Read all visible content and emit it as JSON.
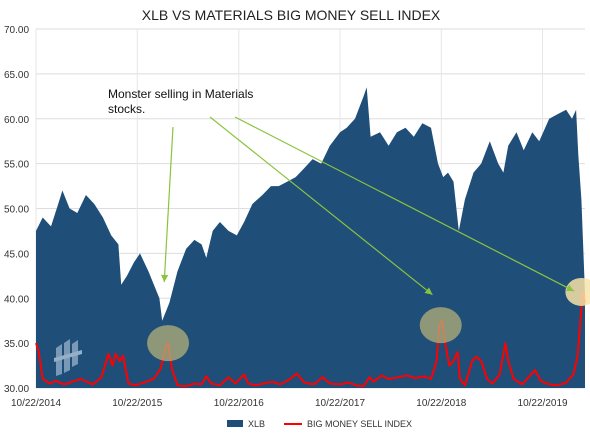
{
  "chart_data": {
    "type": "area",
    "title": "XLB VS MATERIALS BIG MONEY SELL INDEX",
    "ylim": [
      30,
      70
    ],
    "y_ticks": [
      "70.00",
      "65.00",
      "60.00",
      "55.00",
      "50.00",
      "45.00",
      "40.00",
      "35.00",
      "30.00"
    ],
    "x_ticks": [
      "10/22/2014",
      "10/22/2015",
      "10/22/2016",
      "10/22/2017",
      "10/22/2018",
      "10/22/2019"
    ],
    "x_range": [
      "2014-10-22",
      "2020-03-23"
    ],
    "grid": true,
    "legend_position": "bottom",
    "annotation": {
      "text_line1": "Monster selling in Materials",
      "text_line2": "stocks.",
      "arrow_targets": [
        "2016-01-20",
        "2018-09-20",
        "2020-02-05"
      ],
      "highlights": [
        {
          "date": "2016-02-10",
          "value": 35.0
        },
        {
          "date": "2018-10-20",
          "value": 37.0
        },
        {
          "date": "2020-03-10",
          "value": 40.7
        }
      ]
    },
    "series": [
      {
        "name": "XLB",
        "color": "#1f4e79",
        "type": "area",
        "points": [
          [
            "2014-10-22",
            47.5
          ],
          [
            "2014-11-15",
            49.0
          ],
          [
            "2014-12-15",
            48.0
          ],
          [
            "2015-01-10",
            50.5
          ],
          [
            "2015-01-25",
            52.0
          ],
          [
            "2015-02-20",
            50.0
          ],
          [
            "2015-03-20",
            49.5
          ],
          [
            "2015-04-20",
            51.5
          ],
          [
            "2015-05-20",
            50.5
          ],
          [
            "2015-06-20",
            49.0
          ],
          [
            "2015-07-20",
            47.0
          ],
          [
            "2015-08-15",
            46.0
          ],
          [
            "2015-08-25",
            41.5
          ],
          [
            "2015-09-15",
            42.5
          ],
          [
            "2015-10-10",
            44.0
          ],
          [
            "2015-11-01",
            45.0
          ],
          [
            "2015-12-01",
            43.0
          ],
          [
            "2016-01-10",
            40.0
          ],
          [
            "2016-01-20",
            37.5
          ],
          [
            "2016-02-15",
            39.5
          ],
          [
            "2016-03-15",
            43.0
          ],
          [
            "2016-04-15",
            45.5
          ],
          [
            "2016-05-15",
            46.5
          ],
          [
            "2016-06-10",
            46.0
          ],
          [
            "2016-06-27",
            44.5
          ],
          [
            "2016-07-20",
            47.5
          ],
          [
            "2016-08-15",
            48.5
          ],
          [
            "2016-09-15",
            47.5
          ],
          [
            "2016-10-15",
            47.0
          ],
          [
            "2016-11-10",
            48.5
          ],
          [
            "2016-12-10",
            50.5
          ],
          [
            "2017-01-15",
            51.5
          ],
          [
            "2017-02-15",
            52.5
          ],
          [
            "2017-03-15",
            52.5
          ],
          [
            "2017-04-15",
            53.0
          ],
          [
            "2017-05-15",
            53.5
          ],
          [
            "2017-06-15",
            54.5
          ],
          [
            "2017-07-15",
            55.5
          ],
          [
            "2017-08-15",
            55.0
          ],
          [
            "2017-09-15",
            57.0
          ],
          [
            "2017-10-22",
            58.5
          ],
          [
            "2017-11-15",
            59.0
          ],
          [
            "2017-12-15",
            60.0
          ],
          [
            "2018-01-15",
            62.5
          ],
          [
            "2018-01-26",
            63.5
          ],
          [
            "2018-02-09",
            58.0
          ],
          [
            "2018-03-15",
            58.5
          ],
          [
            "2018-04-15",
            57.0
          ],
          [
            "2018-05-15",
            58.5
          ],
          [
            "2018-06-15",
            59.0
          ],
          [
            "2018-07-15",
            58.0
          ],
          [
            "2018-08-15",
            59.5
          ],
          [
            "2018-09-15",
            59.0
          ],
          [
            "2018-10-10",
            55.0
          ],
          [
            "2018-10-29",
            53.5
          ],
          [
            "2018-11-15",
            54.0
          ],
          [
            "2018-12-05",
            53.0
          ],
          [
            "2018-12-24",
            47.5
          ],
          [
            "2019-01-15",
            51.0
          ],
          [
            "2019-02-15",
            54.0
          ],
          [
            "2019-03-15",
            55.0
          ],
          [
            "2019-04-15",
            57.5
          ],
          [
            "2019-05-15",
            55.0
          ],
          [
            "2019-06-03",
            54.0
          ],
          [
            "2019-06-20",
            57.0
          ],
          [
            "2019-07-20",
            58.5
          ],
          [
            "2019-08-15",
            56.5
          ],
          [
            "2019-09-15",
            58.5
          ],
          [
            "2019-10-10",
            57.5
          ],
          [
            "2019-11-15",
            60.0
          ],
          [
            "2019-12-15",
            60.5
          ],
          [
            "2020-01-15",
            61.0
          ],
          [
            "2020-02-05",
            60.0
          ],
          [
            "2020-02-20",
            61.0
          ],
          [
            "2020-02-28",
            56.0
          ],
          [
            "2020-03-10",
            51.0
          ],
          [
            "2020-03-23",
            40.5
          ]
        ]
      },
      {
        "name": "BIG MONEY SELL INDEX",
        "color": "#ff0000",
        "type": "line",
        "points": [
          [
            "2014-10-22",
            35.0
          ],
          [
            "2014-11-01",
            34.0
          ],
          [
            "2014-11-15",
            31.0
          ],
          [
            "2014-12-10",
            30.5
          ],
          [
            "2015-01-01",
            30.8
          ],
          [
            "2015-02-01",
            30.4
          ],
          [
            "2015-03-01",
            30.7
          ],
          [
            "2015-04-01",
            31.0
          ],
          [
            "2015-05-15",
            30.4
          ],
          [
            "2015-06-15",
            31.2
          ],
          [
            "2015-07-10",
            33.8
          ],
          [
            "2015-07-25",
            32.5
          ],
          [
            "2015-08-05",
            33.8
          ],
          [
            "2015-08-20",
            33.0
          ],
          [
            "2015-09-01",
            33.6
          ],
          [
            "2015-09-20",
            30.5
          ],
          [
            "2015-10-15",
            30.3
          ],
          [
            "2015-11-15",
            30.6
          ],
          [
            "2015-12-20",
            31.0
          ],
          [
            "2016-01-15",
            32.2
          ],
          [
            "2016-02-01",
            34.5
          ],
          [
            "2016-02-10",
            35.0
          ],
          [
            "2016-02-25",
            32.0
          ],
          [
            "2016-03-15",
            30.3
          ],
          [
            "2016-04-15",
            30.2
          ],
          [
            "2016-05-15",
            30.5
          ],
          [
            "2016-06-10",
            30.4
          ],
          [
            "2016-06-27",
            31.3
          ],
          [
            "2016-07-15",
            30.5
          ],
          [
            "2016-08-15",
            30.3
          ],
          [
            "2016-09-15",
            31.2
          ],
          [
            "2016-10-10",
            30.5
          ],
          [
            "2016-11-10",
            31.5
          ],
          [
            "2016-11-25",
            30.5
          ],
          [
            "2016-12-20",
            30.3
          ],
          [
            "2017-01-20",
            30.5
          ],
          [
            "2017-02-20",
            30.7
          ],
          [
            "2017-03-20",
            30.4
          ],
          [
            "2017-04-20",
            30.9
          ],
          [
            "2017-05-20",
            31.6
          ],
          [
            "2017-06-15",
            30.6
          ],
          [
            "2017-07-20",
            30.4
          ],
          [
            "2017-08-20",
            31.2
          ],
          [
            "2017-09-15",
            30.5
          ],
          [
            "2017-10-22",
            30.4
          ],
          [
            "2017-11-20",
            30.6
          ],
          [
            "2017-12-20",
            30.3
          ],
          [
            "2018-01-15",
            30.2
          ],
          [
            "2018-02-05",
            31.2
          ],
          [
            "2018-02-20",
            30.7
          ],
          [
            "2018-03-20",
            31.4
          ],
          [
            "2018-04-15",
            31.0
          ],
          [
            "2018-05-20",
            31.2
          ],
          [
            "2018-06-20",
            31.4
          ],
          [
            "2018-07-20",
            31.1
          ],
          [
            "2018-08-20",
            31.3
          ],
          [
            "2018-09-15",
            31.0
          ],
          [
            "2018-10-05",
            33.0
          ],
          [
            "2018-10-15",
            37.0
          ],
          [
            "2018-10-25",
            37.5
          ],
          [
            "2018-11-05",
            35.0
          ],
          [
            "2018-11-20",
            32.5
          ],
          [
            "2018-12-05",
            33.0
          ],
          [
            "2018-12-20",
            34.0
          ],
          [
            "2018-12-28",
            31.0
          ],
          [
            "2019-01-15",
            30.3
          ],
          [
            "2019-02-10",
            33.0
          ],
          [
            "2019-02-25",
            33.5
          ],
          [
            "2019-03-15",
            33.0
          ],
          [
            "2019-04-05",
            31.0
          ],
          [
            "2019-04-25",
            30.5
          ],
          [
            "2019-05-20",
            31.5
          ],
          [
            "2019-06-10",
            35.0
          ],
          [
            "2019-06-20",
            33.0
          ],
          [
            "2019-07-10",
            31.0
          ],
          [
            "2019-08-10",
            30.4
          ],
          [
            "2019-09-10",
            31.5
          ],
          [
            "2019-09-25",
            32.0
          ],
          [
            "2019-10-15",
            30.8
          ],
          [
            "2019-11-15",
            30.4
          ],
          [
            "2019-12-15",
            30.3
          ],
          [
            "2020-01-15",
            30.6
          ],
          [
            "2020-02-10",
            31.5
          ],
          [
            "2020-02-25",
            33.5
          ],
          [
            "2020-03-05",
            37.0
          ],
          [
            "2020-03-15",
            40.7
          ],
          [
            "2020-03-23",
            39.5
          ]
        ]
      }
    ]
  }
}
